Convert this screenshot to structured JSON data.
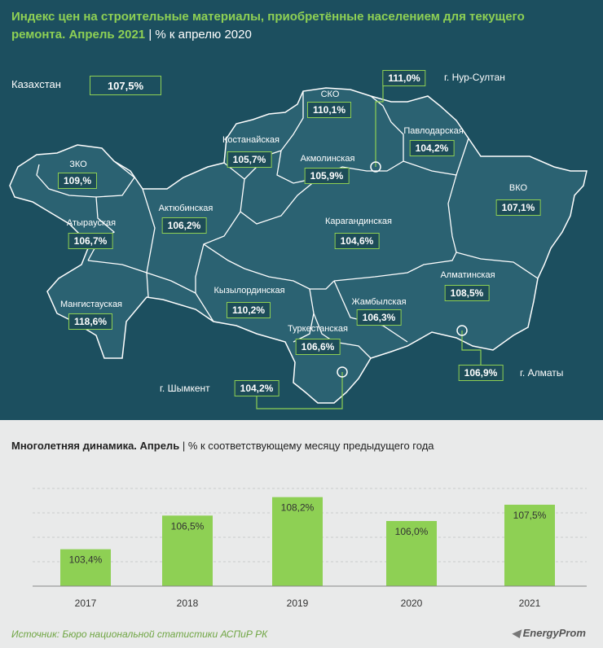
{
  "title": {
    "main": "Индекс цен на строительные материалы, приобретённые населением для текущего ремонта. Апрель 2021",
    "separator": "|",
    "unit": "% к апрелю 2020"
  },
  "kazakhstan": {
    "label": "Казахстан",
    "value": "107,5%"
  },
  "regions": [
    {
      "name": "ЗКО",
      "value": "109,%"
    },
    {
      "name": "Атырауская",
      "value": "106,7%"
    },
    {
      "name": "Мангистауская",
      "value": "118,6%"
    },
    {
      "name": "Актюбинская",
      "value": "106,2%"
    },
    {
      "name": "Костанайская",
      "value": "105,7%"
    },
    {
      "name": "СКО",
      "value": "110,1%"
    },
    {
      "name": "Акмолинская",
      "value": "105,9%"
    },
    {
      "name": "Павлодарская",
      "value": "104,2%"
    },
    {
      "name": "ВКО",
      "value": "107,1%"
    },
    {
      "name": "Карагандинская",
      "value": "104,6%"
    },
    {
      "name": "Кызылординская",
      "value": "110,2%"
    },
    {
      "name": "Жамбылская",
      "value": "106,3%"
    },
    {
      "name": "Алматинская",
      "value": "108,5%"
    },
    {
      "name": "Туркестанская",
      "value": "106,6%"
    }
  ],
  "cities": [
    {
      "name": "г. Нур-Султан",
      "value": "111,0%"
    },
    {
      "name": "г. Алматы",
      "value": "106,9%"
    },
    {
      "name": "г. Шымкент",
      "value": "104,2%"
    }
  ],
  "chart_title": {
    "main": "Многолетняя  динамика.  Апрель",
    "separator": "|",
    "unit": "% к соответствующему месяцу предыдущего года"
  },
  "chart_data": {
    "type": "bar",
    "categories": [
      "2017",
      "2018",
      "2019",
      "2020",
      "2021"
    ],
    "values": [
      103.4,
      106.5,
      108.2,
      106.0,
      107.5
    ],
    "labels": [
      "103,4%",
      "106,5%",
      "108,2%",
      "106,0%",
      "107,5%"
    ],
    "ylim": [
      100,
      109
    ],
    "color": "#8ed054"
  },
  "source": "Источник: Бюро национальной  статистики АСПиР РК",
  "logo": "EnergyProm",
  "colors": {
    "background": "#1c4f5f",
    "map_fill": "#2b6272",
    "accent": "#8ed054"
  }
}
